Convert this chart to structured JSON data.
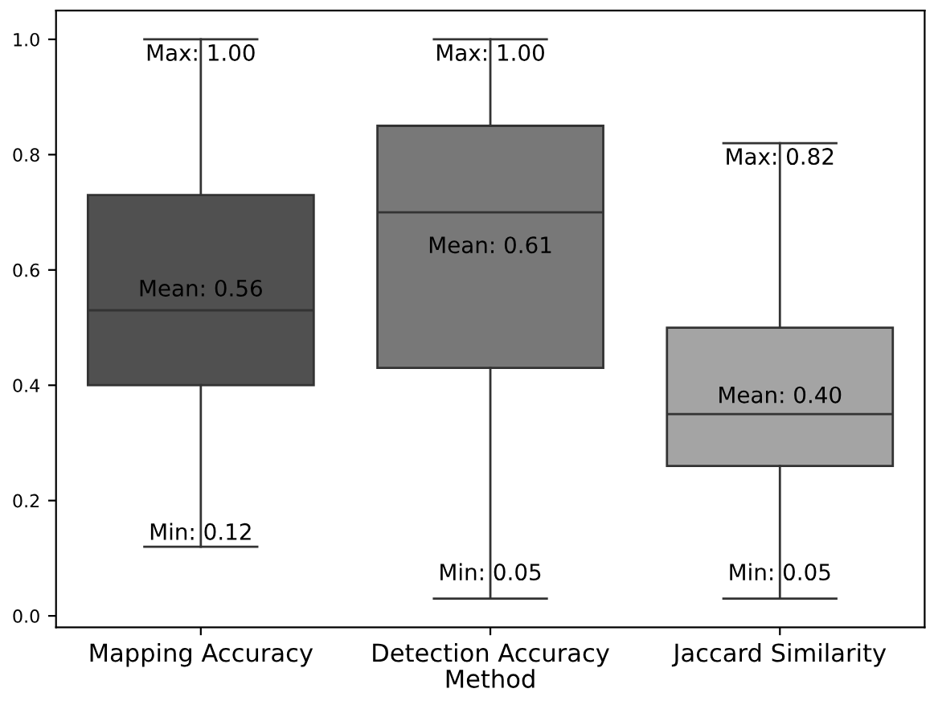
{
  "chart_data": {
    "type": "box",
    "xlabel": "Method",
    "categories": [
      "Mapping Accuracy",
      "Detection Accuracy",
      "Jaccard Similarity"
    ],
    "colors": [
      "#505050",
      "#787878",
      "#a4a4a4"
    ],
    "boxes": [
      {
        "low": 0.12,
        "q1": 0.4,
        "median": 0.53,
        "q3": 0.73,
        "high": 1.0
      },
      {
        "low": 0.03,
        "q1": 0.43,
        "median": 0.7,
        "q3": 0.85,
        "high": 1.0
      },
      {
        "low": 0.03,
        "q1": 0.26,
        "median": 0.35,
        "q3": 0.5,
        "high": 0.82
      }
    ],
    "ylim": [
      -0.02,
      1.05
    ],
    "yticks": [
      {
        "value": 0,
        "label": "0.0"
      },
      0.2,
      0.4,
      0.6,
      0.8,
      {
        "value": 1,
        "label": "1.0"
      }
    ],
    "grid": false,
    "annotations": [
      {
        "text": "Max: 1.00",
        "x": "Mapping Accuracy",
        "y": 1.0
      },
      "Mean: 0.56",
      {
        "text": "Min: 0.12",
        "x": "Mapping Accuracy",
        "y": 0.12
      },
      {
        "text": "Max: 1.00",
        "x": "Detection Accuracy",
        "y": 1.0
      },
      "Mean: 0.61",
      {
        "text": "Min: 0.05",
        "x": "Detection Accuracy",
        "y": 0.05
      },
      {
        "text": "Max: 0.82",
        "x": "Jaccard Similarity",
        "y": 0.82
      },
      "Mean: 0.40",
      {
        "text": "Min: 0.05",
        "x": "Jaccard Similarity",
        "y": 0.05
      }
    ]
  }
}
